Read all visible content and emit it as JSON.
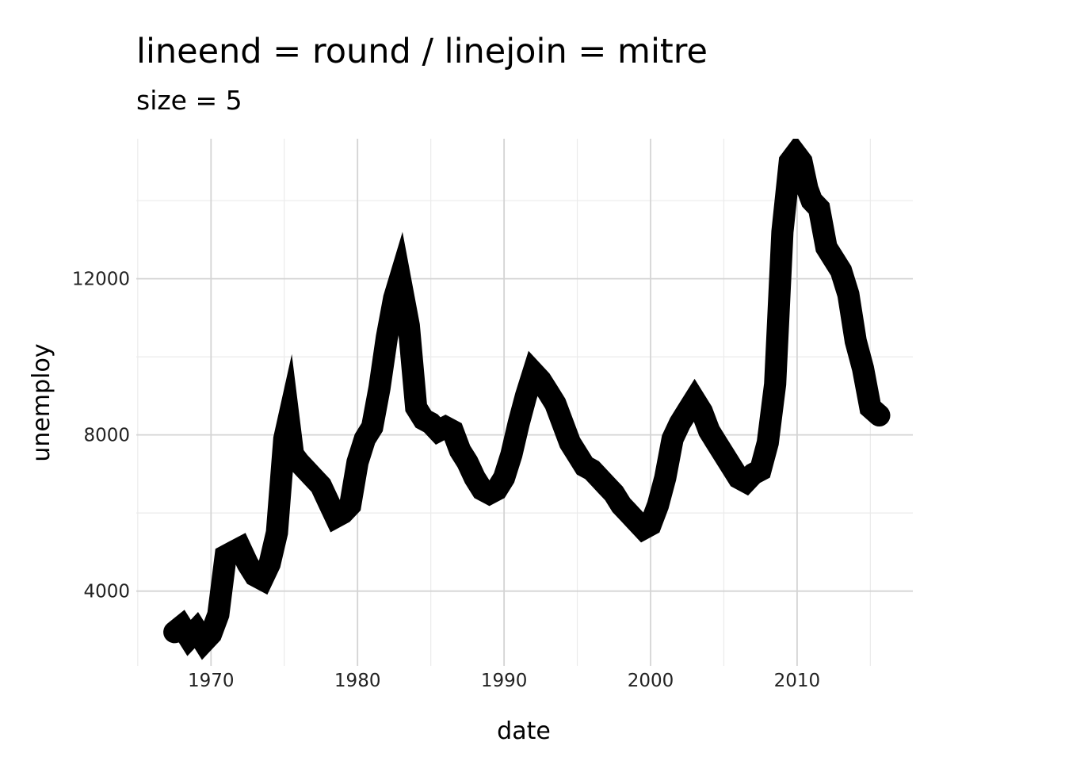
{
  "chart_data": {
    "type": "line",
    "title": "lineend = round / linejoin = mitre",
    "subtitle": "size = 5",
    "xlabel": "date",
    "ylabel": "unemploy",
    "xlim": [
      1964.9,
      2017.9
    ],
    "ylim": [
      2085,
      15585
    ],
    "x_ticks": [
      1970,
      1980,
      1990,
      2000,
      2010
    ],
    "x_tick_labels": [
      "1970",
      "1980",
      "1990",
      "2000",
      "2010"
    ],
    "y_ticks": [
      4000,
      8000,
      12000
    ],
    "y_tick_labels": [
      "4000",
      "8000",
      "12000"
    ],
    "grid": true,
    "legend": "none",
    "line_color": "#000000",
    "series": [
      {
        "x": [
          1967.5,
          1968.0,
          1968.5,
          1969.0,
          1969.5,
          1970.0,
          1970.5,
          1971.0,
          1971.5,
          1972.0,
          1972.5,
          1973.0,
          1973.5,
          1974.0,
          1974.5,
          1975.0,
          1975.3,
          1975.6,
          1976.0,
          1976.5,
          1977.0,
          1977.5,
          1978.0,
          1978.5,
          1979.0,
          1979.5,
          1980.0,
          1980.5,
          1981.0,
          1981.5,
          1982.0,
          1982.5,
          1982.9,
          1983.5,
          1984.0,
          1984.5,
          1985.0,
          1985.5,
          1986.0,
          1986.5,
          1987.0,
          1987.5,
          1988.0,
          1988.5,
          1989.0,
          1989.5,
          1990.0,
          1990.5,
          1991.0,
          1991.5,
          1992.0,
          1992.5,
          1993.0,
          1993.5,
          1994.0,
          1994.5,
          1995.0,
          1995.5,
          1996.0,
          1996.5,
          1997.0,
          1997.5,
          1998.0,
          1998.5,
          1999.0,
          1999.5,
          2000.0,
          2000.5,
          2001.0,
          2001.5,
          2002.0,
          2002.5,
          2003.0,
          2003.5,
          2004.0,
          2004.5,
          2005.0,
          2005.5,
          2006.0,
          2006.5,
          2007.0,
          2007.5,
          2008.0,
          2008.5,
          2009.0,
          2009.5,
          2009.9,
          2010.3,
          2010.7,
          2011.0,
          2011.5,
          2012.0,
          2012.5,
          2013.0,
          2013.5,
          2014.0,
          2014.5,
          2015.0,
          2015.6
        ],
        "y": [
          2950,
          3100,
          2800,
          3000,
          2700,
          2900,
          3400,
          4900,
          5000,
          5100,
          4700,
          4400,
          4300,
          4700,
          5500,
          7900,
          8400,
          7500,
          7300,
          7100,
          6900,
          6700,
          6300,
          5900,
          6000,
          6200,
          7300,
          7900,
          8200,
          9200,
          10500,
          11500,
          12000,
          10800,
          8700,
          8400,
          8300,
          8100,
          8200,
          8100,
          7600,
          7300,
          6900,
          6600,
          6500,
          6600,
          6900,
          7500,
          8300,
          9000,
          9600,
          9400,
          9100,
          8800,
          8300,
          7800,
          7500,
          7200,
          7100,
          6900,
          6700,
          6500,
          6200,
          6000,
          5800,
          5600,
          5700,
          6200,
          6900,
          7900,
          8300,
          8600,
          8900,
          8600,
          8100,
          7800,
          7500,
          7200,
          6900,
          6800,
          7000,
          7100,
          7800,
          9300,
          13200,
          15000,
          15200,
          15000,
          14300,
          14000,
          13800,
          12800,
          12500,
          12200,
          11600,
          10400,
          9700,
          8700,
          8500
        ]
      }
    ]
  }
}
